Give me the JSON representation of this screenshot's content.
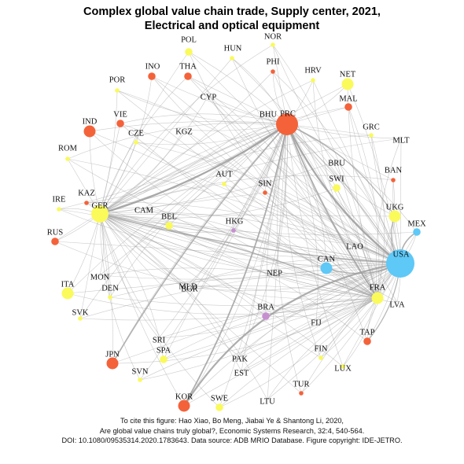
{
  "figure": {
    "title_line1": "Complex global value chain trade, Supply center, 2021,",
    "title_line2": "Electrical and optical equipment",
    "caption_line1": "To cite this figure: Hao Xiao, Bo Meng, Jiabai Ye & Shantong Li, 2020,",
    "caption_line2": "Are global value chains truly global?, Economic Systems Research, 32:4, 540-564.",
    "caption_line3": "DOI: 10.1080/09535314.2020.1783643. Data source: ADB MRIO Database. Figure copyright: IDE-JETRO."
  },
  "colors": {
    "supply_center_orange": "#f4623a",
    "yellow": "#fafa5a",
    "blue": "#5ec8f7",
    "purple": "#c78fd0",
    "edge": "#a0a0a0"
  },
  "network": {
    "hubs": [
      "PRC",
      "USA",
      "GER",
      "FRA"
    ],
    "nodes": [
      {
        "id": "PRC",
        "label": "PRC",
        "color": "orange",
        "size": "xl"
      },
      {
        "id": "BHU",
        "label": "BHU",
        "color": "none",
        "size": "none"
      },
      {
        "id": "USA",
        "label": "USA",
        "color": "blue",
        "size": "xl"
      },
      {
        "id": "GER",
        "label": "GER",
        "color": "yellow",
        "size": "l"
      },
      {
        "id": "FRA",
        "label": "FRA",
        "color": "yellow",
        "size": "m"
      },
      {
        "id": "NOR",
        "label": "NOR",
        "color": "yellow",
        "size": "xs"
      },
      {
        "id": "POL",
        "label": "POL",
        "color": "yellow",
        "size": "s"
      },
      {
        "id": "HUN",
        "label": "HUN",
        "color": "yellow",
        "size": "xs"
      },
      {
        "id": "PHI",
        "label": "PHI",
        "color": "orange",
        "size": "xs"
      },
      {
        "id": "INO",
        "label": "INO",
        "color": "orange",
        "size": "s"
      },
      {
        "id": "THA",
        "label": "THA",
        "color": "orange",
        "size": "s"
      },
      {
        "id": "HRV",
        "label": "HRV",
        "color": "yellow",
        "size": "xs"
      },
      {
        "id": "NET",
        "label": "NET",
        "color": "yellow",
        "size": "m"
      },
      {
        "id": "POR",
        "label": "POR",
        "color": "yellow",
        "size": "xs"
      },
      {
        "id": "CYP",
        "label": "CYP",
        "color": "none",
        "size": "none"
      },
      {
        "id": "MAL",
        "label": "MAL",
        "color": "orange",
        "size": "s"
      },
      {
        "id": "IND",
        "label": "IND",
        "color": "orange",
        "size": "m"
      },
      {
        "id": "VIE",
        "label": "VIE",
        "color": "orange",
        "size": "s"
      },
      {
        "id": "CZE",
        "label": "CZE",
        "color": "yellow",
        "size": "xs"
      },
      {
        "id": "KGZ",
        "label": "KGZ",
        "color": "none",
        "size": "none"
      },
      {
        "id": "GRC",
        "label": "GRC",
        "color": "yellow",
        "size": "xs"
      },
      {
        "id": "MLT",
        "label": "MLT",
        "color": "none",
        "size": "none"
      },
      {
        "id": "ROM",
        "label": "ROM",
        "color": "yellow",
        "size": "xs"
      },
      {
        "id": "BRU",
        "label": "BRU",
        "color": "none",
        "size": "none"
      },
      {
        "id": "SWI",
        "label": "SWI",
        "color": "yellow",
        "size": "s"
      },
      {
        "id": "BAN",
        "label": "BAN",
        "color": "orange",
        "size": "xs"
      },
      {
        "id": "AUT",
        "label": "AUT",
        "color": "yellow",
        "size": "xs"
      },
      {
        "id": "SIN",
        "label": "SIN",
        "color": "orange",
        "size": "xs"
      },
      {
        "id": "KAZ",
        "label": "KAZ",
        "color": "orange",
        "size": "xs"
      },
      {
        "id": "IRE",
        "label": "IRE",
        "color": "yellow",
        "size": "xs"
      },
      {
        "id": "CAM",
        "label": "CAM",
        "color": "none",
        "size": "none"
      },
      {
        "id": "BEL",
        "label": "BEL",
        "color": "yellow",
        "size": "s"
      },
      {
        "id": "UKG",
        "label": "UKG",
        "color": "yellow",
        "size": "m"
      },
      {
        "id": "MEX",
        "label": "MEX",
        "color": "blue",
        "size": "s"
      },
      {
        "id": "HKG",
        "label": "HKG",
        "color": "purple",
        "size": "xs"
      },
      {
        "id": "TAP",
        "label": "TAP",
        "color": "orange",
        "size": "s"
      },
      {
        "id": "RUS",
        "label": "RUS",
        "color": "orange",
        "size": "s"
      },
      {
        "id": "LAO",
        "label": "LAO",
        "color": "none",
        "size": "none"
      },
      {
        "id": "CAN",
        "label": "CAN",
        "color": "blue",
        "size": "m"
      },
      {
        "id": "NEP",
        "label": "NEP",
        "color": "none",
        "size": "none"
      },
      {
        "id": "MON",
        "label": "MON",
        "color": "none",
        "size": "none"
      },
      {
        "id": "ITA",
        "label": "ITA",
        "color": "yellow",
        "size": "m"
      },
      {
        "id": "DEN",
        "label": "DEN",
        "color": "yellow",
        "size": "xs"
      },
      {
        "id": "MLD",
        "label": "MLD",
        "color": "none",
        "size": "none"
      },
      {
        "id": "BGR",
        "label": "BGR",
        "color": "none",
        "size": "none"
      },
      {
        "id": "LVA",
        "label": "LVA",
        "color": "none",
        "size": "none"
      },
      {
        "id": "BRA",
        "label": "BRA",
        "color": "purple",
        "size": "s"
      },
      {
        "id": "SVK",
        "label": "SVK",
        "color": "yellow",
        "size": "xs"
      },
      {
        "id": "FIJ",
        "label": "FIJ",
        "color": "none",
        "size": "none"
      },
      {
        "id": "SRI",
        "label": "SRI",
        "color": "none",
        "size": "none"
      },
      {
        "id": "SPA",
        "label": "SPA",
        "color": "yellow",
        "size": "s"
      },
      {
        "id": "JPN",
        "label": "JPN",
        "color": "orange",
        "size": "m"
      },
      {
        "id": "FIN",
        "label": "FIN",
        "color": "yellow",
        "size": "xs"
      },
      {
        "id": "PAK",
        "label": "PAK",
        "color": "none",
        "size": "none"
      },
      {
        "id": "SVN",
        "label": "SVN",
        "color": "yellow",
        "size": "xs"
      },
      {
        "id": "EST",
        "label": "EST",
        "color": "none",
        "size": "none"
      },
      {
        "id": "LUX",
        "label": "LUX",
        "color": "yellow",
        "size": "xs"
      },
      {
        "id": "TUR",
        "label": "TUR",
        "color": "orange",
        "size": "xs"
      },
      {
        "id": "KOR",
        "label": "KOR",
        "color": "orange",
        "size": "m"
      },
      {
        "id": "SWE",
        "label": "SWE",
        "color": "yellow",
        "size": "s"
      },
      {
        "id": "LTU",
        "label": "LTU",
        "color": "none",
        "size": "none"
      }
    ]
  }
}
